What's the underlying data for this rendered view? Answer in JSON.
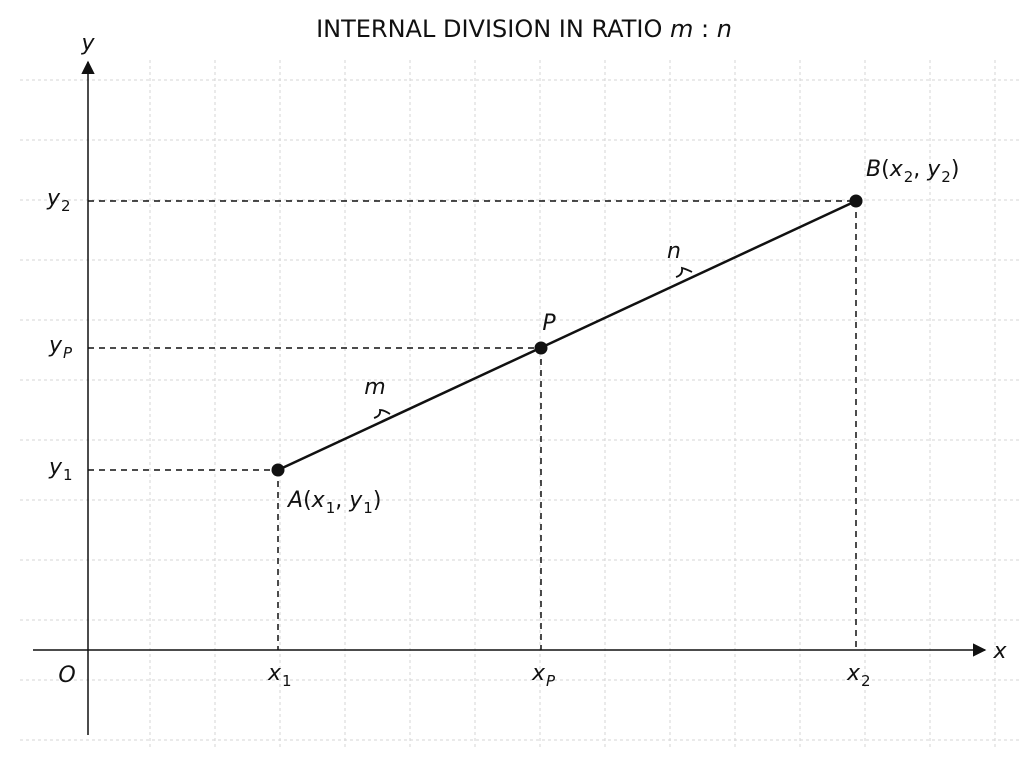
{
  "title": {
    "main": "INTERNAL DIVISION IN RATIO ",
    "m": "m",
    "colon": " : ",
    "n": "n"
  },
  "axes": {
    "x_label": "x",
    "y_label": "y",
    "origin": "O"
  },
  "y_ticks": [
    {
      "id": "y2",
      "base": "y",
      "sub": "2"
    },
    {
      "id": "yP",
      "base": "y",
      "sub": "P"
    },
    {
      "id": "y1",
      "base": "y",
      "sub": "1"
    }
  ],
  "x_ticks": [
    {
      "id": "x1",
      "base": "x",
      "sub": "1"
    },
    {
      "id": "xP",
      "base": "x",
      "sub": "P"
    },
    {
      "id": "x2",
      "base": "x",
      "sub": "2"
    }
  ],
  "points": {
    "A": {
      "name": "A",
      "open": "(",
      "x": "x",
      "xs": "1",
      "comma": ", ",
      "y": "y",
      "ys": "1",
      "close": ")"
    },
    "B": {
      "name": "B",
      "open": "(",
      "x": "x",
      "xs": "2",
      "comma": ", ",
      "y": "y",
      "ys": "2",
      "close": ")"
    },
    "P": {
      "name": "P"
    }
  },
  "segment_labels": {
    "m": "m",
    "n": "n"
  }
}
